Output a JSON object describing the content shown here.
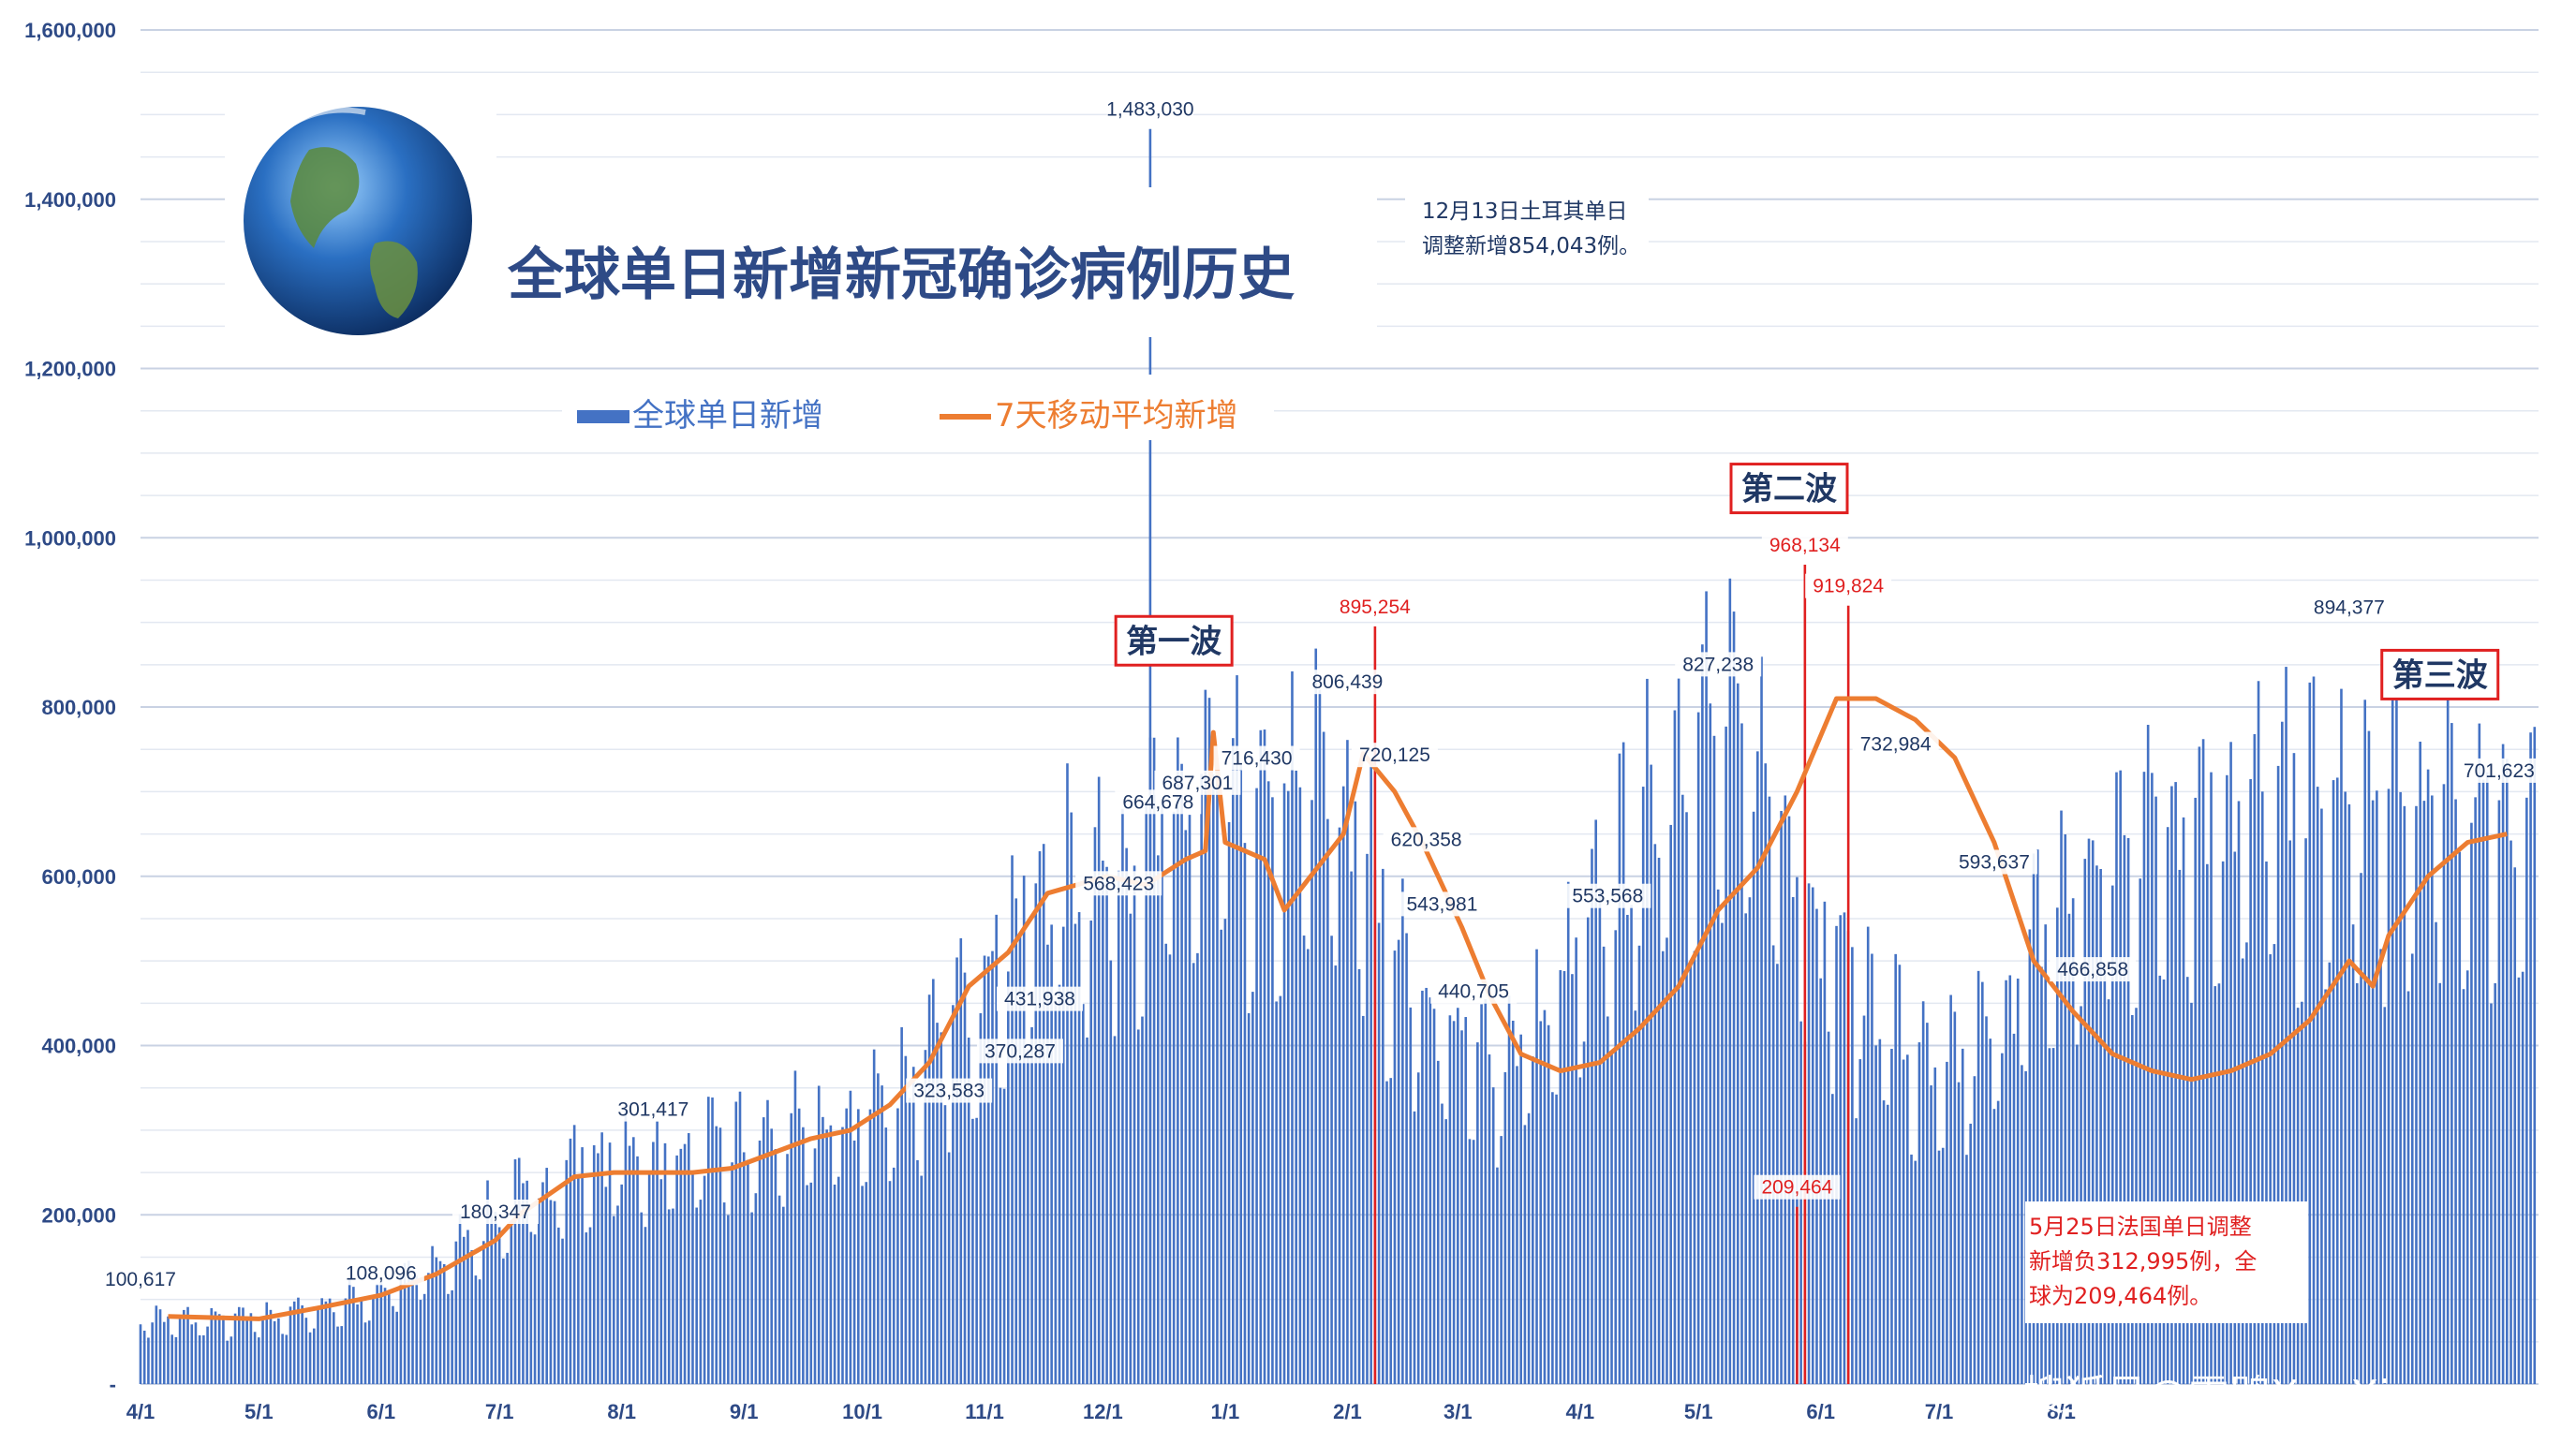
{
  "title": "全球单日新增新冠确诊病例历史",
  "legend": {
    "bars": "全球单日新增",
    "line": "7天移动平均新增"
  },
  "colors": {
    "bar": "#4472c4",
    "line": "#ed7d31",
    "grid": "#d9dfe9",
    "axis_text": "#2e4a86",
    "red": "#e02020"
  },
  "watermark": "搜狐号@雪鸮XueXiao",
  "icons": {
    "globe": "earth-globe-icon"
  },
  "chart_data": {
    "type": "bar",
    "grid": true,
    "ylim": [
      0,
      1600000
    ],
    "y_ticks": [
      "-",
      "200,000",
      "400,000",
      "600,000",
      "800,000",
      "1,000,000",
      "1,200,000",
      "1,400,000",
      "1,600,000"
    ],
    "y_tick_values": [
      0,
      200000,
      400000,
      600000,
      800000,
      1000000,
      1200000,
      1400000,
      1600000
    ],
    "x_ticks": [
      "4/1",
      "5/1",
      "6/1",
      "7/1",
      "8/1",
      "9/1",
      "10/1",
      "11/1",
      "12/1",
      "1/1",
      "2/1",
      "3/1",
      "4/1",
      "5/1",
      "6/1",
      "7/1",
      "8/1"
    ],
    "start_date": "2020-04-01",
    "bar_series_anchors": [
      [
        0,
        80000
      ],
      [
        10,
        75000
      ],
      [
        30,
        78000
      ],
      [
        45,
        90000
      ],
      [
        61,
        110000
      ],
      [
        75,
        140000
      ],
      [
        90,
        200000
      ],
      [
        110,
        260000
      ],
      [
        130,
        270000
      ],
      [
        150,
        280000
      ],
      [
        160,
        290000
      ],
      [
        180,
        310000
      ],
      [
        200,
        380000
      ],
      [
        215,
        500000
      ],
      [
        230,
        580000
      ],
      [
        245,
        620000
      ],
      [
        258,
        640000
      ],
      [
        270,
        700000
      ],
      [
        285,
        650000
      ],
      [
        300,
        720000
      ],
      [
        310,
        620000
      ],
      [
        325,
        450000
      ],
      [
        340,
        380000
      ],
      [
        355,
        420000
      ],
      [
        370,
        550000
      ],
      [
        385,
        700000
      ],
      [
        395,
        780000
      ],
      [
        405,
        760000
      ],
      [
        415,
        700000
      ],
      [
        425,
        550000
      ],
      [
        440,
        450000
      ],
      [
        455,
        350000
      ],
      [
        470,
        420000
      ],
      [
        485,
        560000
      ],
      [
        500,
        620000
      ],
      [
        511,
        680000
      ]
    ],
    "moving_average_anchors": [
      [
        7,
        80000
      ],
      [
        30,
        77000
      ],
      [
        45,
        90000
      ],
      [
        61,
        105000
      ],
      [
        75,
        130000
      ],
      [
        90,
        170000
      ],
      [
        96,
        200000
      ],
      [
        110,
        245000
      ],
      [
        120,
        250000
      ],
      [
        140,
        250000
      ],
      [
        150,
        255000
      ],
      [
        170,
        290000
      ],
      [
        180,
        300000
      ],
      [
        190,
        330000
      ],
      [
        200,
        380000
      ],
      [
        210,
        470000
      ],
      [
        220,
        510000
      ],
      [
        230,
        580000
      ],
      [
        245,
        600000
      ],
      [
        255,
        590000
      ],
      [
        265,
        620000
      ],
      [
        270,
        630000
      ],
      [
        272,
        770000
      ],
      [
        275,
        640000
      ],
      [
        285,
        620000
      ],
      [
        290,
        560000
      ],
      [
        305,
        650000
      ],
      [
        310,
        745000
      ],
      [
        318,
        700000
      ],
      [
        325,
        640000
      ],
      [
        335,
        540000
      ],
      [
        342,
        460000
      ],
      [
        350,
        390000
      ],
      [
        360,
        370000
      ],
      [
        370,
        380000
      ],
      [
        380,
        420000
      ],
      [
        390,
        470000
      ],
      [
        400,
        560000
      ],
      [
        410,
        610000
      ],
      [
        420,
        700000
      ],
      [
        430,
        810000
      ],
      [
        440,
        810000
      ],
      [
        450,
        785000
      ],
      [
        460,
        740000
      ],
      [
        470,
        640000
      ],
      [
        480,
        500000
      ],
      [
        490,
        440000
      ],
      [
        500,
        390000
      ],
      [
        510,
        370000
      ],
      [
        520,
        360000
      ],
      [
        530,
        370000
      ],
      [
        540,
        390000
      ],
      [
        550,
        430000
      ],
      [
        560,
        500000
      ],
      [
        566,
        470000
      ],
      [
        570,
        530000
      ],
      [
        580,
        600000
      ],
      [
        590,
        640000
      ],
      [
        600,
        650000
      ]
    ],
    "spikes": [
      {
        "day": 256,
        "value": 1483030,
        "label": "1,483,030",
        "color": "blue"
      },
      {
        "day": 422,
        "value": 968134,
        "label": "968,134",
        "color": "red"
      },
      {
        "day": 433,
        "value": 919824,
        "label": "919,824",
        "color": "red"
      },
      {
        "day": 313,
        "value": 895254,
        "label": "895,254",
        "color": "red"
      },
      {
        "day": 420,
        "value": 209464,
        "label": "209,464",
        "color": "red"
      }
    ],
    "data_labels": [
      {
        "day": 0,
        "value": 100617,
        "label": "100,617",
        "color": "blue"
      },
      {
        "day": 61,
        "value": 108096,
        "label": "108,096",
        "color": "blue"
      },
      {
        "day": 90,
        "value": 180347,
        "label": "180,347",
        "color": "blue"
      },
      {
        "day": 130,
        "value": 301417,
        "label": "301,417",
        "color": "blue"
      },
      {
        "day": 205,
        "value": 323583,
        "label": "323,583",
        "color": "blue"
      },
      {
        "day": 223,
        "value": 370287,
        "label": "370,287",
        "color": "blue"
      },
      {
        "day": 228,
        "value": 431938,
        "label": "431,938",
        "color": "blue"
      },
      {
        "day": 248,
        "value": 568423,
        "label": "568,423",
        "color": "blue"
      },
      {
        "day": 258,
        "value": 664678,
        "label": "664,678",
        "color": "blue"
      },
      {
        "day": 268,
        "value": 687301,
        "label": "687,301",
        "color": "blue"
      },
      {
        "day": 283,
        "value": 716430,
        "label": "716,430",
        "color": "blue"
      },
      {
        "day": 306,
        "value": 806439,
        "label": "806,439",
        "color": "blue"
      },
      {
        "day": 318,
        "value": 720125,
        "label": "720,125",
        "color": "blue"
      },
      {
        "day": 326,
        "value": 620358,
        "label": "620,358",
        "color": "blue"
      },
      {
        "day": 330,
        "value": 543981,
        "label": "543,981",
        "color": "blue"
      },
      {
        "day": 338,
        "value": 440705,
        "label": "440,705",
        "color": "blue"
      },
      {
        "day": 372,
        "value": 553568,
        "label": "553,568",
        "color": "blue"
      },
      {
        "day": 400,
        "value": 827238,
        "label": "827,238",
        "color": "blue"
      },
      {
        "day": 445,
        "value": 732984,
        "label": "732,984",
        "color": "blue"
      },
      {
        "day": 470,
        "value": 593637,
        "label": "593,637",
        "color": "blue"
      },
      {
        "day": 495,
        "value": 466858,
        "label": "466,858",
        "color": "blue"
      },
      {
        "day": 560,
        "value": 894377,
        "label": "894,377",
        "color": "blue"
      },
      {
        "day": 598,
        "value": 701623,
        "label": "701,623",
        "color": "blue"
      }
    ],
    "waves": [
      {
        "label": "第一波",
        "day": 262,
        "value": 865000
      },
      {
        "label": "第二波",
        "day": 418,
        "value": 1045000
      },
      {
        "label": "第三波",
        "day": 583,
        "value": 825000
      }
    ],
    "annotations": {
      "turkey": [
        "12月13日土耳其单日",
        "调整新增854,043例。"
      ],
      "france": [
        "5月25日法国单日调整",
        "新增负312,995例，全",
        "球为209,464例。"
      ]
    }
  }
}
